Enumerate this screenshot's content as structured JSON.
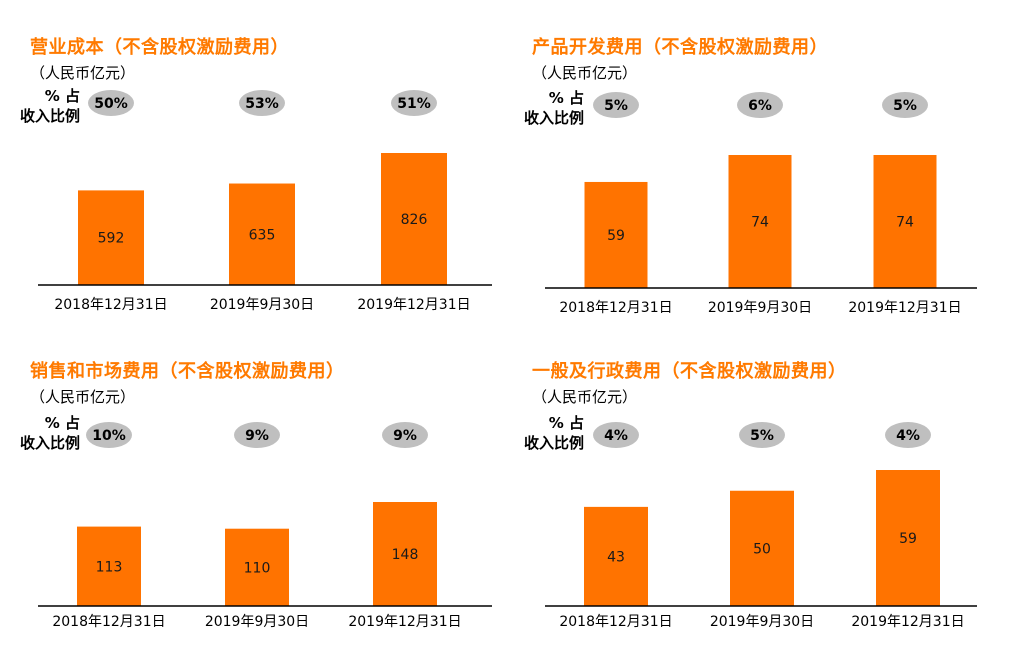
{
  "pct_label_line1": "% 占",
  "pct_label_line2": "收入比例",
  "unit": "（人民币亿元）",
  "colors": {
    "title": "#ff7a00",
    "bar": "#ff7300",
    "badge": "#bfbfbf"
  },
  "chart_data": [
    {
      "type": "bar",
      "title": "营业成本（不含股权激励费用）",
      "categories": [
        "2018年12月31日",
        "2019年9月30日",
        "2019年12月31日"
      ],
      "values": [
        592,
        635,
        826
      ],
      "pct_of_revenue": [
        "50%",
        "53%",
        "51%"
      ]
    },
    {
      "type": "bar",
      "title": "产品开发费用（不含股权激励费用）",
      "categories": [
        "2018年12月31日",
        "2019年9月30日",
        "2019年12月31日"
      ],
      "values": [
        59,
        74,
        74
      ],
      "pct_of_revenue": [
        "5%",
        "6%",
        "5%"
      ]
    },
    {
      "type": "bar",
      "title": "销售和市场费用（不含股权激励费用）",
      "categories": [
        "2018年12月31日",
        "2019年9月30日",
        "2019年12月31日"
      ],
      "values": [
        113,
        110,
        148
      ],
      "pct_of_revenue": [
        "10%",
        "9%",
        "9%"
      ]
    },
    {
      "type": "bar",
      "title": "一般及行政费用（不含股权激励费用）",
      "categories": [
        "2018年12月31日",
        "2019年9月30日",
        "2019年12月31日"
      ],
      "values": [
        43,
        50,
        59
      ],
      "pct_of_revenue": [
        "4%",
        "5%",
        "4%"
      ]
    }
  ]
}
